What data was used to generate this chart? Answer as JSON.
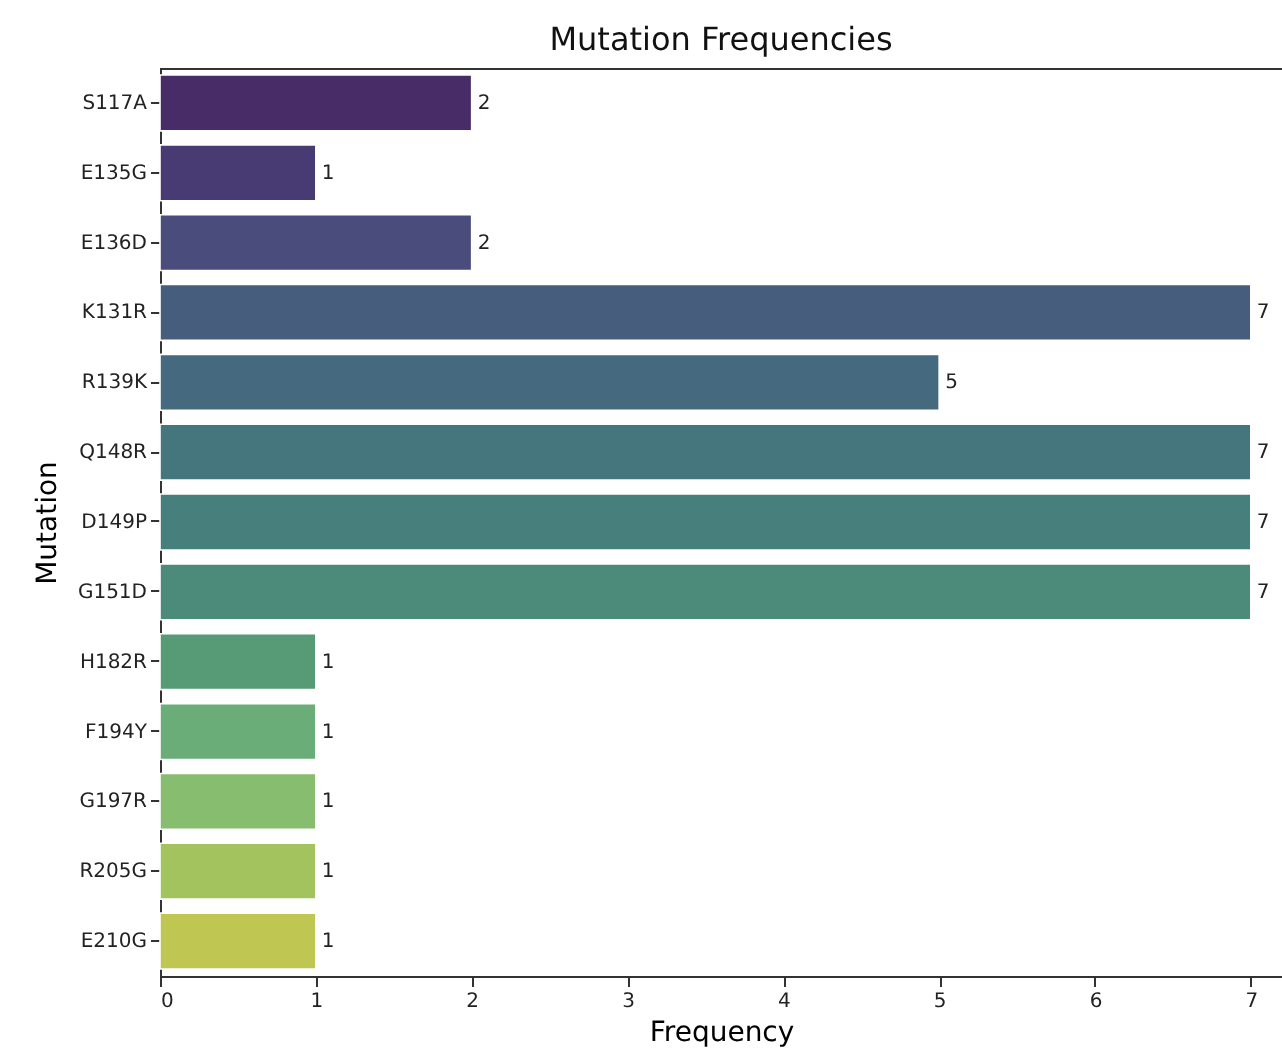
{
  "chart_data": {
    "type": "bar",
    "orientation": "horizontal",
    "title": "Mutation Frequencies",
    "xlabel": "Frequency",
    "ylabel": "Mutation",
    "categories": [
      "S117A",
      "E135G",
      "E136D",
      "K131R",
      "R139K",
      "Q148R",
      "D149P",
      "G151D",
      "H182R",
      "F194Y",
      "G197R",
      "R205G",
      "E210G"
    ],
    "values": [
      2,
      1,
      2,
      7,
      5,
      7,
      7,
      7,
      1,
      1,
      1,
      1,
      1
    ],
    "colors": [
      "#472c68",
      "#483a73",
      "#4a4d7b",
      "#465d7e",
      "#456a7f",
      "#45767e",
      "#467f7b",
      "#4c8b79",
      "#569a76",
      "#6bad79",
      "#87bd6e",
      "#a2c35e",
      "#bfc752"
    ],
    "xlim": [
      0,
      7.2
    ],
    "xticks": [
      0,
      1,
      2,
      3,
      4,
      5,
      6,
      7
    ],
    "data_labels": true,
    "grid": false
  }
}
